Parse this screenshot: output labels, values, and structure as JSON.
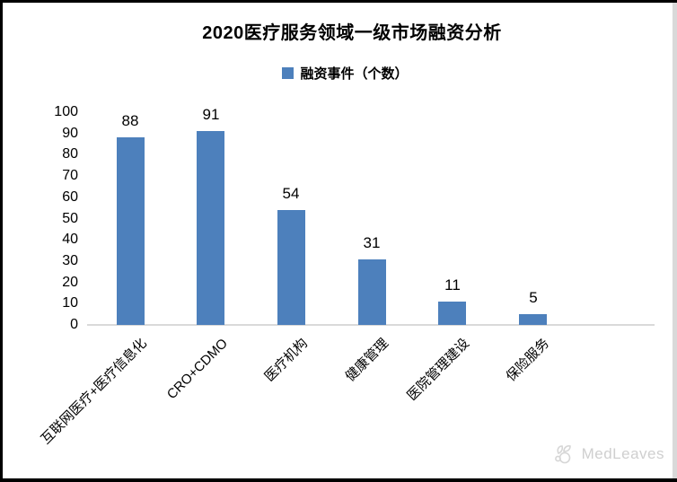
{
  "chart_data": {
    "type": "bar",
    "title": "2020医疗服务领域一级市场融资分析",
    "legend_label": "融资事件（个数）",
    "legend_position": "top",
    "categories": [
      "互联网医疗+医疗信息化",
      "CRO+CDMO",
      "医疗机构",
      "健康管理",
      "医院管理建设",
      "保险服务"
    ],
    "values": [
      88,
      91,
      54,
      31,
      11,
      5
    ],
    "show_data_labels": true,
    "xlabel": "",
    "ylabel": "",
    "ylim": [
      0,
      100
    ],
    "ytick_step": 10,
    "grid": false,
    "bar_color": "#4d80bc",
    "axis_line_color": "#d9d9d9",
    "text_color": "#000000"
  },
  "frame": {
    "border_color": "#000000",
    "right_edge_color": "#d9d9d9"
  },
  "watermark": {
    "text": "MedLeaves",
    "icon": "medleaves-logo-icon",
    "color": "#cfcfcf"
  }
}
